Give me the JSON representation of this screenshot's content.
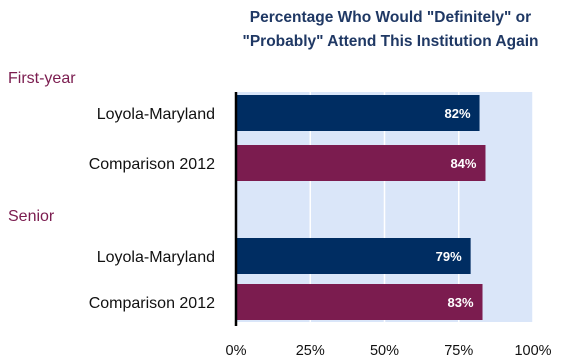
{
  "chart_data": {
    "type": "bar",
    "orientation": "horizontal",
    "title": [
      "Percentage Who Would \"Definitely\" or",
      "\"Probably\" Attend This Institution Again"
    ],
    "xlim": [
      0,
      100
    ],
    "ticks": [
      "0%",
      "25%",
      "50%",
      "75%",
      "100%"
    ],
    "groups": [
      {
        "label": "First-year",
        "bars": [
          {
            "category": "Loyola-Maryland",
            "value": 82,
            "label": "82%",
            "color": "#002d62"
          },
          {
            "category": "Comparison 2012",
            "value": 84,
            "label": "84%",
            "color": "#7b1c4f"
          }
        ]
      },
      {
        "label": "Senior",
        "bars": [
          {
            "category": "Loyola-Maryland",
            "value": 79,
            "label": "79%",
            "color": "#002d62"
          },
          {
            "category": "Comparison 2012",
            "value": 83,
            "label": "83%",
            "color": "#7b1c4f"
          }
        ]
      }
    ],
    "background_color": "#dae6f9",
    "grid": true,
    "gridline_color": "#ffffff"
  }
}
